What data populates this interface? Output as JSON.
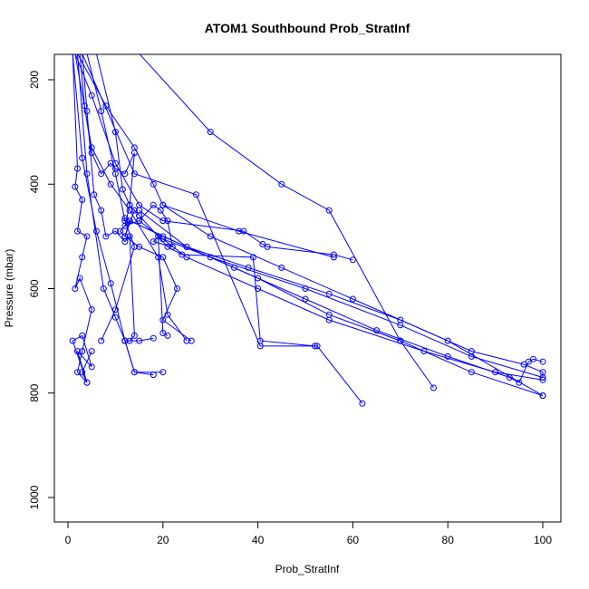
{
  "chart_data": {
    "type": "line",
    "title": "ATOM1 Southbound Prob_StratInf",
    "xlabel": "Prob_StratInf",
    "ylabel": "Pressure (mbar)",
    "xlim": [
      0,
      100
    ],
    "ylim": [
      1040,
      150
    ],
    "x_ticks": [
      {
        "value": 0,
        "label": "0"
      },
      {
        "value": 20,
        "label": "20"
      },
      {
        "value": 40,
        "label": "40"
      },
      {
        "value": 60,
        "label": "60"
      },
      {
        "value": 80,
        "label": "80"
      },
      {
        "value": 100,
        "label": "100"
      }
    ],
    "y_ticks": [
      {
        "value": 200,
        "label": "200"
      },
      {
        "value": 400,
        "label": "400"
      },
      {
        "value": 600,
        "label": "600"
      },
      {
        "value": 800,
        "label": "800"
      },
      {
        "value": 1000,
        "label": "1000"
      }
    ],
    "series_color": "#0000ff",
    "series": [
      {
        "x": [
          1,
          2,
          1.5,
          3,
          2,
          4,
          3,
          1.5,
          2.5,
          5,
          3,
          2,
          4,
          1,
          3,
          5,
          2,
          4,
          3,
          5
        ],
        "y": [
          150,
          370,
          405,
          430,
          490,
          500,
          540,
          600,
          580,
          640,
          720,
          760,
          780,
          700,
          690,
          750,
          720,
          780,
          760,
          720
        ]
      },
      {
        "x": [
          2.5,
          3.5,
          5,
          7,
          9,
          10,
          12,
          14,
          13,
          15,
          14,
          12,
          13,
          11,
          12,
          15,
          20,
          23,
          20,
          26
        ],
        "y": [
          150,
          250,
          340,
          380,
          360,
          370,
          380,
          340,
          440,
          460,
          450,
          500,
          470,
          490,
          500,
          520,
          540,
          600,
          660,
          700
        ]
      },
      {
        "x": [
          6,
          10,
          11.5,
          13,
          12,
          15,
          18,
          19.5,
          21,
          22,
          18,
          19,
          20,
          21
        ],
        "y": [
          150,
          300,
          410,
          440,
          480,
          470,
          440,
          450,
          470,
          520,
          510,
          500,
          685,
          690
        ]
      },
      {
        "x": [
          3,
          4,
          5.5,
          7,
          8,
          10,
          12,
          13,
          14,
          13,
          12,
          14,
          20
        ],
        "y": [
          150,
          260,
          420,
          450,
          500,
          490,
          510,
          500,
          690,
          700,
          700,
          760,
          760
        ]
      },
      {
        "x": [
          1.5,
          5,
          10,
          15,
          20,
          37,
          41,
          42,
          56,
          60
        ],
        "y": [
          150,
          230,
          360,
          440,
          470,
          490,
          515,
          520,
          535,
          545
        ]
      },
      {
        "x": [
          15,
          21,
          24,
          39,
          40.5,
          52
        ],
        "y": [
          460,
          520,
          535,
          540,
          700,
          710
        ]
      },
      {
        "x": [
          3,
          14,
          27,
          40.5,
          52.5,
          62
        ],
        "y": [
          150,
          380,
          420,
          710,
          710,
          820
        ]
      },
      {
        "x": [
          15,
          30,
          45,
          55,
          70,
          77
        ],
        "y": [
          150,
          300,
          400,
          450,
          700,
          790
        ]
      },
      {
        "x": [
          15,
          25,
          40,
          55,
          70,
          85,
          100
        ],
        "y": [
          450,
          520,
          580,
          650,
          700,
          760,
          805
        ]
      },
      {
        "x": [
          12,
          20,
          35,
          50,
          65,
          80,
          93,
          95,
          97,
          98,
          100
        ],
        "y": [
          465,
          500,
          560,
          620,
          680,
          730,
          770,
          780,
          740,
          735,
          740
        ]
      },
      {
        "x": [
          13,
          25,
          38,
          55,
          70,
          85,
          96,
          100,
          100
        ],
        "y": [
          470,
          520,
          560,
          610,
          660,
          720,
          745,
          760,
          770
        ]
      },
      {
        "x": [
          15,
          25,
          40,
          55,
          75,
          90,
          100
        ],
        "y": [
          470,
          540,
          600,
          660,
          720,
          760,
          775
        ]
      },
      {
        "x": [
          20,
          30,
          50,
          70,
          85,
          100
        ],
        "y": [
          505,
          540,
          600,
          670,
          730,
          770
        ]
      },
      {
        "x": [
          20,
          30,
          45,
          60,
          80,
          100
        ],
        "y": [
          440,
          500,
          560,
          620,
          700,
          805
        ]
      },
      {
        "x": [
          2,
          8,
          14,
          18,
          20,
          36,
          56
        ],
        "y": [
          150,
          250,
          330,
          400,
          440,
          490,
          540
        ]
      },
      {
        "x": [
          1.5,
          5,
          9,
          13,
          19,
          21,
          25
        ],
        "y": [
          150,
          330,
          400,
          450,
          540,
          650,
          700
        ]
      },
      {
        "x": [
          4,
          7,
          10,
          12,
          14,
          10,
          7
        ],
        "y": [
          150,
          260,
          380,
          470,
          520,
          640,
          700
        ]
      },
      {
        "x": [
          1,
          3,
          6,
          9,
          12,
          14,
          18
        ],
        "y": [
          150,
          350,
          490,
          590,
          700,
          760,
          765
        ]
      },
      {
        "x": [
          2,
          4,
          7.5,
          10,
          12,
          15,
          18
        ],
        "y": [
          150,
          380,
          600,
          655,
          700,
          700,
          695
        ]
      }
    ]
  }
}
